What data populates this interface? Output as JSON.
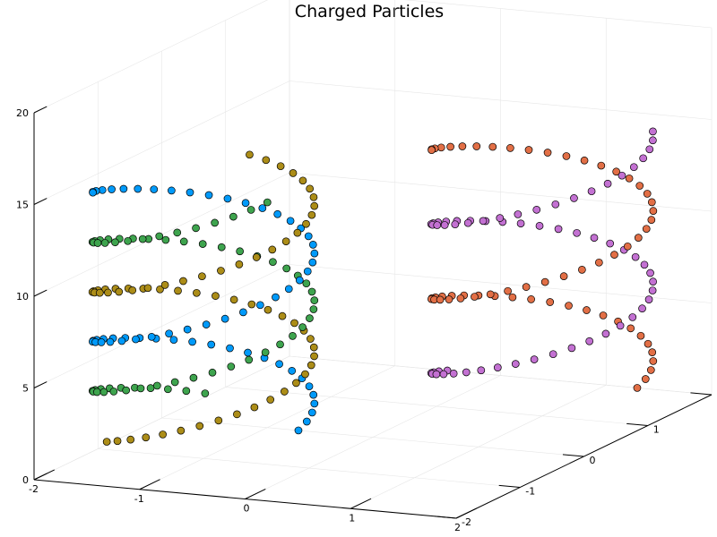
{
  "chart_data": {
    "type": "scatter3d",
    "title": "Charged Particles",
    "xlabel": "",
    "ylabel": "",
    "zlabel": "",
    "xlim": [
      -2,
      2
    ],
    "ylim": [
      -2,
      2
    ],
    "zlim": [
      0,
      20
    ],
    "x_ticks": [
      "-2",
      "-1",
      "0",
      "1",
      "2"
    ],
    "y_ticks": [
      "-2",
      "-1",
      "0",
      "1",
      "2"
    ],
    "z_ticks": [
      "0",
      "5",
      "10",
      "15",
      "20"
    ],
    "grid": true,
    "legend": "none",
    "series": [
      {
        "color": "#009AFA",
        "center": [
          -1,
          -1
        ],
        "radius": 0.9,
        "phase": 0.0,
        "turns": 1.6,
        "z_range": [
          2,
          15
        ]
      },
      {
        "color": "#E26F46",
        "center": [
          1,
          1
        ],
        "radius": 0.9,
        "phase": 0.0,
        "turns": 1.6,
        "z_range": [
          2,
          15
        ]
      },
      {
        "color": "#3EA44E",
        "center": [
          -1,
          -1
        ],
        "radius": 0.9,
        "phase": 2.1,
        "turns": 1.6,
        "z_range": [
          2,
          15
        ]
      },
      {
        "color": "#C371D2",
        "center": [
          1,
          1
        ],
        "radius": 0.9,
        "phase": 3.14,
        "turns": 1.6,
        "z_range": [
          2,
          15
        ]
      },
      {
        "color": "#AC8D18",
        "center": [
          -1,
          -1
        ],
        "radius": 0.9,
        "phase": 4.2,
        "turns": 1.6,
        "z_range": [
          2,
          15
        ]
      }
    ],
    "points_per_series": 60
  }
}
